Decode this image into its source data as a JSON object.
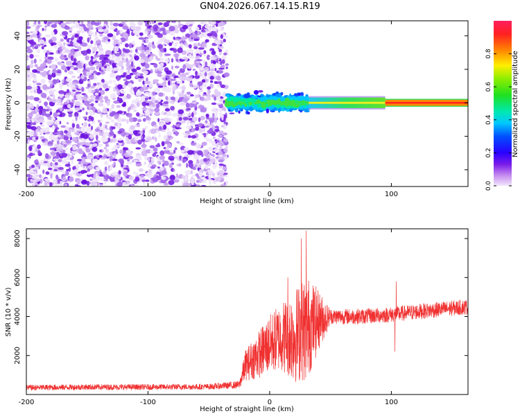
{
  "title": "GN04.2026.067.14.15.R19",
  "chart_data": [
    {
      "type": "heatmap",
      "xlabel": "Height of straight line (km)",
      "ylabel": "Frequency (Hz)",
      "xlim": [
        -200,
        163
      ],
      "ylim": [
        -50,
        49
      ],
      "xticks": [
        -200,
        -100,
        0,
        100
      ],
      "yticks": [
        -40,
        -20,
        0,
        20,
        40
      ],
      "colorbar": {
        "label": "Normalized spectral amplitude",
        "range": [
          0.0,
          1.0
        ],
        "ticks": [
          0.0,
          0.2,
          0.4,
          0.6,
          0.8
        ],
        "tick_labels": [
          "0.0",
          "0.2",
          "0.4",
          "0.6",
          "0.8"
        ]
      },
      "regions": [
        {
          "x": [
            -200,
            -35
          ],
          "freq_span": [
            -50,
            49
          ],
          "amplitude": 0.05
        },
        {
          "x": [
            -35,
            32
          ],
          "freq_span": [
            -10,
            8
          ],
          "amplitude": 0.28
        },
        {
          "x": [
            32,
            95
          ],
          "freq_span": [
            -4,
            4
          ],
          "amplitude": 0.45
        },
        {
          "x": [
            95,
            163
          ],
          "freq_span": [
            -2,
            2
          ],
          "amplitude": 0.95
        }
      ]
    },
    {
      "type": "line",
      "xlabel": "Height of straight line (km)",
      "ylabel": "SNR (10 * v/v)",
      "xlim": [
        -200,
        163
      ],
      "ylim": [
        0,
        8500
      ],
      "xticks": [
        -200,
        -100,
        0,
        100
      ],
      "yticks": [
        2000,
        4000,
        6000,
        8000
      ],
      "series": [
        {
          "color": "#f03030",
          "envelope": [
            {
              "x": -200,
              "mean": 350,
              "spread": 150
            },
            {
              "x": -150,
              "mean": 380,
              "spread": 150
            },
            {
              "x": -100,
              "mean": 380,
              "spread": 150
            },
            {
              "x": -50,
              "mean": 400,
              "spread": 150
            },
            {
              "x": -25,
              "mean": 500,
              "spread": 200
            },
            {
              "x": -20,
              "mean": 1500,
              "spread": 800
            },
            {
              "x": -10,
              "mean": 2000,
              "spread": 1200
            },
            {
              "x": 0,
              "mean": 2600,
              "spread": 1500
            },
            {
              "x": 10,
              "mean": 3000,
              "spread": 1800
            },
            {
              "x": 20,
              "mean": 3000,
              "spread": 2400
            },
            {
              "x": 30,
              "mean": 3400,
              "spread": 2800
            },
            {
              "x": 40,
              "mean": 3800,
              "spread": 1600
            },
            {
              "x": 50,
              "mean": 4000,
              "spread": 400
            },
            {
              "x": 75,
              "mean": 4000,
              "spread": 400
            },
            {
              "x": 100,
              "mean": 4100,
              "spread": 400
            },
            {
              "x": 130,
              "mean": 4300,
              "spread": 400
            },
            {
              "x": 163,
              "mean": 4500,
              "spread": 400
            }
          ],
          "peaks": [
            {
              "x": 26,
              "y": 8000
            },
            {
              "x": 30,
              "y": 8400
            },
            {
              "x": 15,
              "y": 6000
            },
            {
              "x": 104,
              "y": 5800
            },
            {
              "x": 103,
              "y": 2200
            }
          ]
        }
      ]
    }
  ]
}
